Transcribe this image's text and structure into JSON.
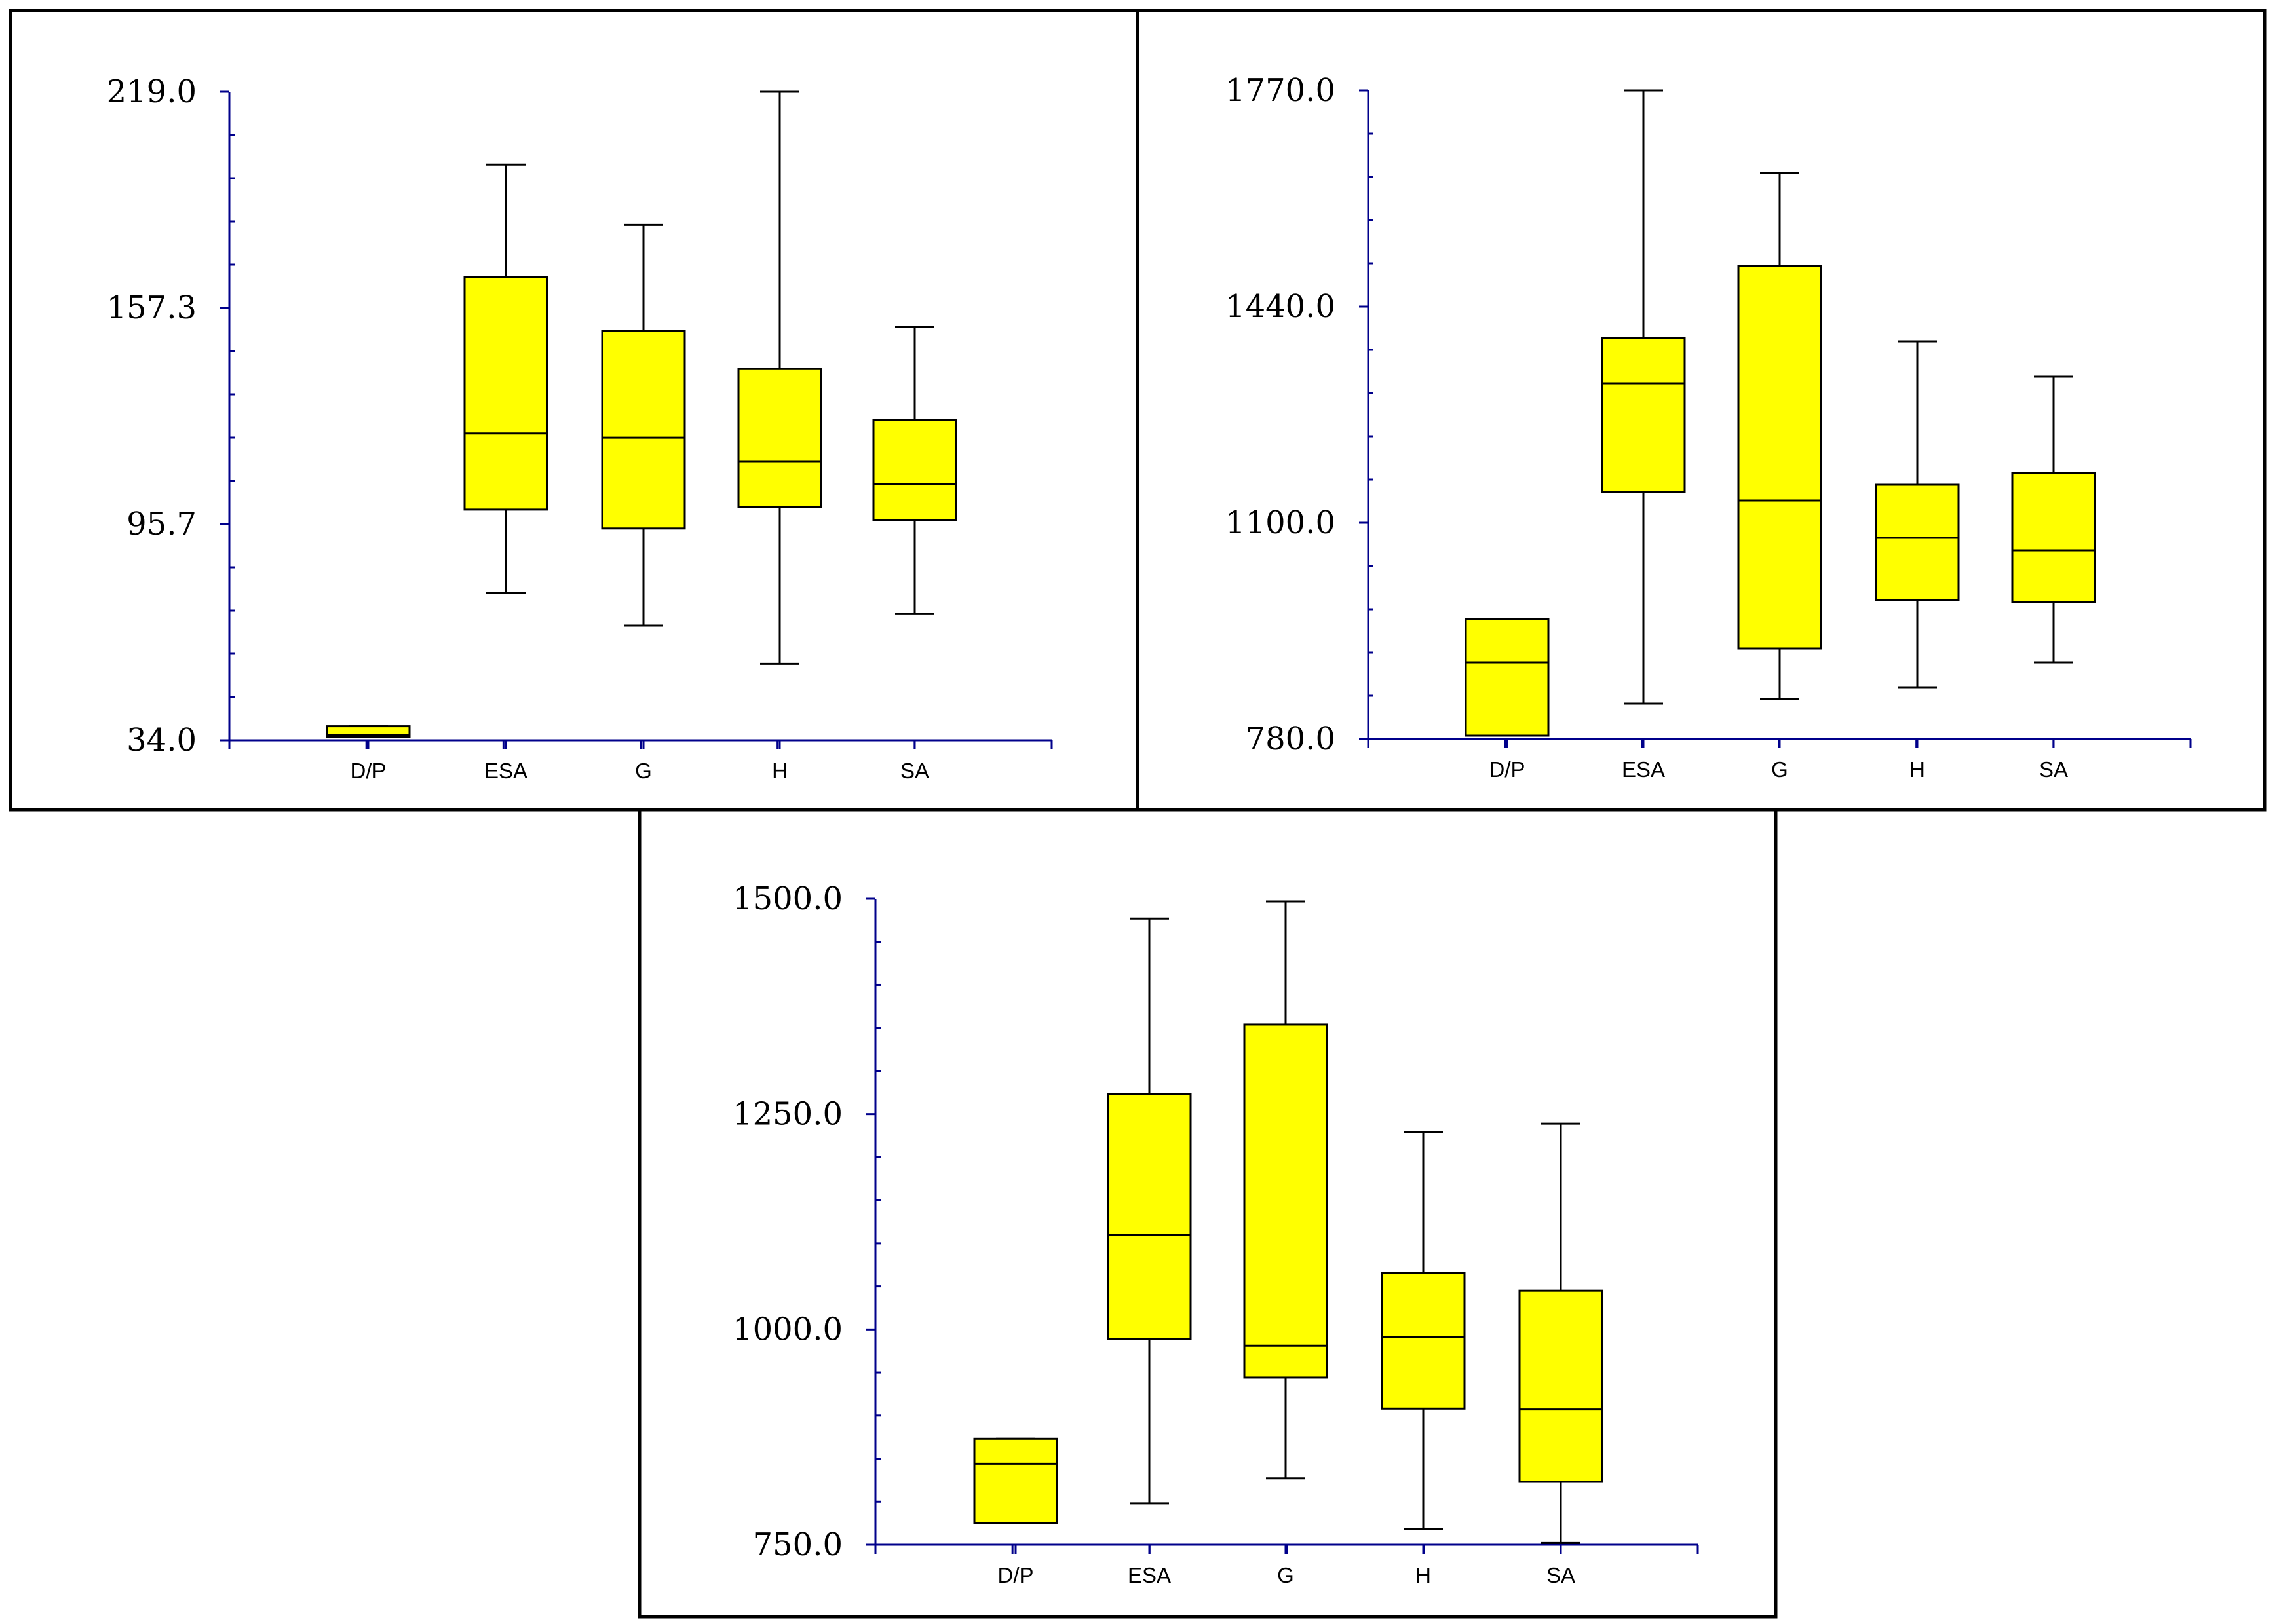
{
  "chart_data": [
    {
      "type": "box",
      "title": "",
      "xlabel": "",
      "ylabel": "",
      "categories": [
        "D/P",
        "ESA",
        "G",
        "H",
        "SA"
      ],
      "ylim": [
        34.0,
        219.0
      ],
      "ytick_labels": [
        "34.0",
        "95.7",
        "157.3",
        "219.0"
      ],
      "colors": {
        "box": "#ffff00",
        "axis": "#00008b"
      },
      "boxes": [
        {
          "category": "D/P",
          "min": 35.0,
          "q1": 35.0,
          "median": 35.5,
          "q3": 38.0,
          "max": 38.0
        },
        {
          "category": "ESA",
          "min": 76.0,
          "q1": 99.8,
          "median": 121.5,
          "q3": 166.2,
          "max": 198.2
        },
        {
          "category": "G",
          "min": 66.7,
          "q1": 94.4,
          "median": 120.3,
          "q3": 150.7,
          "max": 181.0
        },
        {
          "category": "H",
          "min": 55.8,
          "q1": 100.5,
          "median": 113.6,
          "q3": 139.9,
          "max": 219.0
        },
        {
          "category": "SA",
          "min": 70.0,
          "q1": 96.8,
          "median": 107.0,
          "q3": 125.4,
          "max": 152.0
        }
      ]
    },
    {
      "type": "box",
      "title": "",
      "xlabel": "",
      "ylabel": "",
      "categories": [
        "D/P",
        "ESA",
        "G",
        "H",
        "SA"
      ],
      "ylim": [
        780.0,
        1770.0
      ],
      "ytick_labels": [
        "780.0",
        "1100.0",
        "1440.0",
        "1770.0"
      ],
      "colors": {
        "box": "#ffff00",
        "axis": "#00008b"
      },
      "boxes": [
        {
          "category": "D/P",
          "min": 785.0,
          "q1": 785.0,
          "median": 897.0,
          "q3": 963.0,
          "max": 963.0
        },
        {
          "category": "ESA",
          "min": 834.0,
          "q1": 1157.0,
          "median": 1323.0,
          "q3": 1392.0,
          "max": 1770.0
        },
        {
          "category": "G",
          "min": 841.0,
          "q1": 918.0,
          "median": 1144.0,
          "q3": 1502.0,
          "max": 1644.0
        },
        {
          "category": "H",
          "min": 859.0,
          "q1": 992.0,
          "median": 1087.0,
          "q3": 1168.0,
          "max": 1387.0
        },
        {
          "category": "SA",
          "min": 897.0,
          "q1": 989.0,
          "median": 1068.0,
          "q3": 1186.0,
          "max": 1333.0
        }
      ]
    },
    {
      "type": "box",
      "title": "",
      "xlabel": "",
      "ylabel": "",
      "categories": [
        "D/P",
        "ESA",
        "G",
        "H",
        "SA"
      ],
      "ylim": [
        750.0,
        1500.0
      ],
      "ytick_labels": [
        "750.0",
        "1000.0",
        "1250.0",
        "1500.0"
      ],
      "colors": {
        "box": "#ffff00",
        "axis": "#00008b"
      },
      "boxes": [
        {
          "category": "D/P",
          "min": 775.0,
          "q1": 775.0,
          "median": 844.0,
          "q3": 873.0,
          "max": 873.0
        },
        {
          "category": "ESA",
          "min": 798.0,
          "q1": 989.0,
          "median": 1110.0,
          "q3": 1273.0,
          "max": 1477.0
        },
        {
          "category": "G",
          "min": 827.0,
          "q1": 944.0,
          "median": 981.0,
          "q3": 1354.0,
          "max": 1497.0
        },
        {
          "category": "H",
          "min": 768.0,
          "q1": 908.0,
          "median": 991.0,
          "q3": 1066.0,
          "max": 1229.0
        },
        {
          "category": "SA",
          "min": 752.0,
          "q1": 823.0,
          "median": 907.0,
          "q3": 1045.0,
          "max": 1239.0
        }
      ]
    }
  ]
}
